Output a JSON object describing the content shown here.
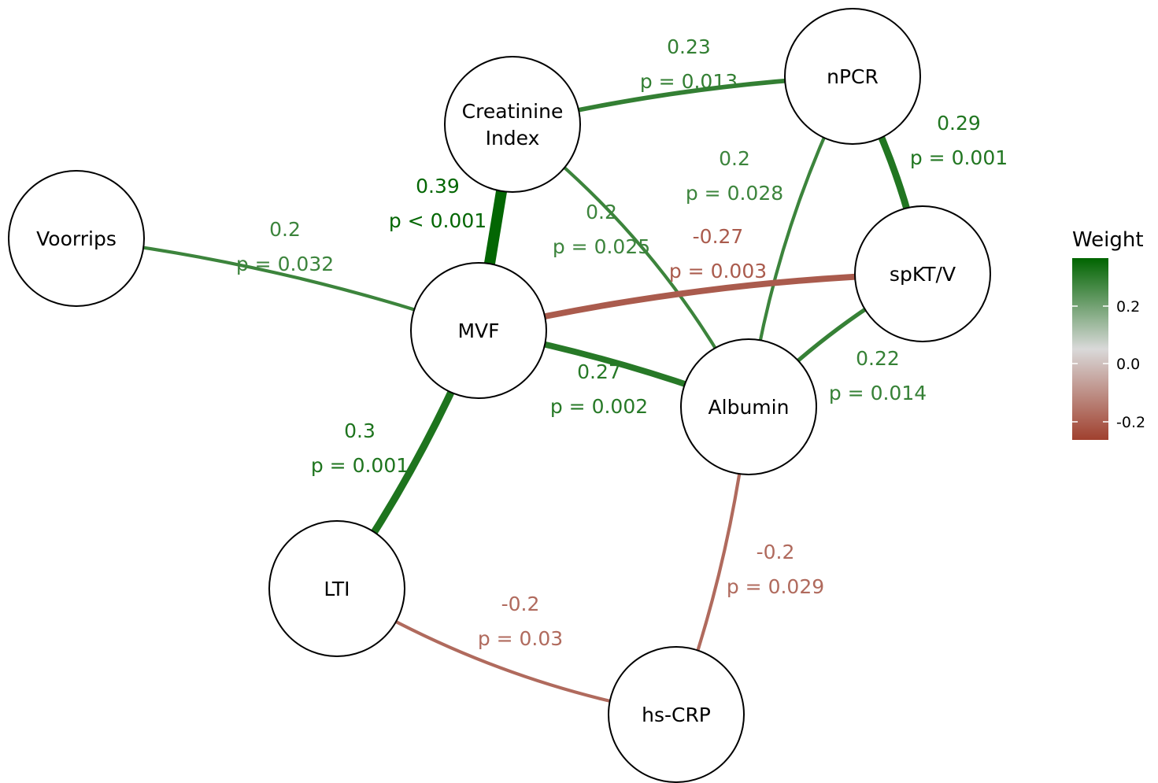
{
  "legend": {
    "title": "Weight",
    "ticks": [
      "0.2",
      "0.0",
      "-0.2"
    ],
    "colors": {
      "positive": "#006400",
      "zero": "#d9d9d9",
      "negative": "#a0402e"
    }
  },
  "nodes": [
    {
      "id": "voorrips",
      "lines": [
        "Voorrips"
      ]
    },
    {
      "id": "creatinine",
      "lines": [
        "Creatinine",
        "Index"
      ]
    },
    {
      "id": "npcr",
      "lines": [
        "nPCR"
      ]
    },
    {
      "id": "spktv",
      "lines": [
        "spKT/V"
      ]
    },
    {
      "id": "mvf",
      "lines": [
        "MVF"
      ]
    },
    {
      "id": "albumin",
      "lines": [
        "Albumin"
      ]
    },
    {
      "id": "lti",
      "lines": [
        "LTI"
      ]
    },
    {
      "id": "hscrp",
      "lines": [
        "hs-CRP"
      ]
    }
  ],
  "edges": [
    {
      "from": "voorrips",
      "to": "mvf",
      "weight": 0.2,
      "label": [
        "0.2",
        "p = 0.032"
      ]
    },
    {
      "from": "creatinine",
      "to": "npcr",
      "weight": 0.23,
      "label": [
        "0.23",
        "p = 0.013"
      ]
    },
    {
      "from": "creatinine",
      "to": "mvf",
      "weight": 0.39,
      "label": [
        "0.39",
        "p < 0.001"
      ]
    },
    {
      "from": "creatinine",
      "to": "albumin",
      "weight": 0.2,
      "label": [
        "0.2",
        "p = 0.025"
      ]
    },
    {
      "from": "npcr",
      "to": "albumin",
      "weight": 0.2,
      "label": [
        "0.2",
        "p = 0.028"
      ]
    },
    {
      "from": "npcr",
      "to": "spktv",
      "weight": 0.29,
      "label": [
        "0.29",
        "p = 0.001"
      ]
    },
    {
      "from": "mvf",
      "to": "spktv",
      "weight": -0.27,
      "label": [
        "-0.27",
        "p = 0.003"
      ]
    },
    {
      "from": "mvf",
      "to": "albumin",
      "weight": 0.27,
      "label": [
        "0.27",
        "p = 0.002"
      ]
    },
    {
      "from": "spktv",
      "to": "albumin",
      "weight": 0.22,
      "label": [
        "0.22",
        "p = 0.014"
      ]
    },
    {
      "from": "mvf",
      "to": "lti",
      "weight": 0.3,
      "label": [
        "0.3",
        "p = 0.001"
      ]
    },
    {
      "from": "lti",
      "to": "hscrp",
      "weight": -0.2,
      "label": [
        "-0.2",
        "p = 0.03"
      ]
    },
    {
      "from": "albumin",
      "to": "hscrp",
      "weight": -0.2,
      "label": [
        "-0.2",
        "p = 0.029"
      ]
    }
  ]
}
